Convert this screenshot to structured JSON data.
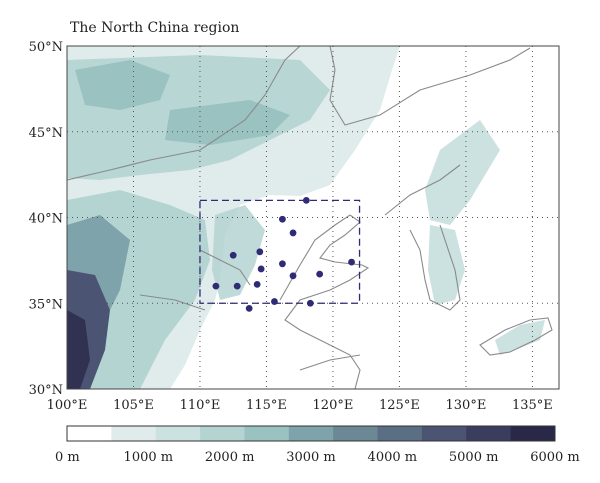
{
  "title": "The North China region",
  "lat_labels": [
    "50°N",
    "45°N",
    "40°N",
    "35°N",
    "30°N"
  ],
  "lat_values": [
    50,
    45,
    40,
    35,
    30
  ],
  "lon_labels": [
    "100°E",
    "105°E",
    "110°E",
    "115°E",
    "120°E",
    "125°E",
    "130°E",
    "135°E"
  ],
  "lon_values": [
    100,
    105,
    110,
    115,
    120,
    125,
    130,
    135
  ],
  "extent": {
    "lon": [
      100,
      137
    ],
    "lat": [
      30,
      50
    ]
  },
  "study_box": {
    "lon": [
      110,
      122
    ],
    "lat": [
      35,
      41
    ]
  },
  "stations": [
    {
      "lon": 118.0,
      "lat": 41.0
    },
    {
      "lon": 116.2,
      "lat": 39.9
    },
    {
      "lon": 117.0,
      "lat": 39.1
    },
    {
      "lon": 114.5,
      "lat": 38.0
    },
    {
      "lon": 112.5,
      "lat": 37.8
    },
    {
      "lon": 116.2,
      "lat": 37.3
    },
    {
      "lon": 114.6,
      "lat": 37.0
    },
    {
      "lon": 117.0,
      "lat": 36.6
    },
    {
      "lon": 119.0,
      "lat": 36.7
    },
    {
      "lon": 121.4,
      "lat": 37.4
    },
    {
      "lon": 111.2,
      "lat": 36.0
    },
    {
      "lon": 112.8,
      "lat": 36.0
    },
    {
      "lon": 114.3,
      "lat": 36.1
    },
    {
      "lon": 115.6,
      "lat": 35.1
    },
    {
      "lon": 118.3,
      "lat": 35.0
    },
    {
      "lon": 113.7,
      "lat": 34.7
    }
  ],
  "colorbar": {
    "labels": [
      "0 m",
      "1000 m",
      "2000 m",
      "3000 m",
      "4000 m",
      "5000 m",
      "6000 m"
    ],
    "colors": [
      "#ffffff",
      "#dfeceb",
      "#cbe2e0",
      "#b4d4d2",
      "#99c2c1",
      "#7ea3aa",
      "#6b8894",
      "#5a6e84",
      "#4b5473",
      "#3b3d5e",
      "#2a2848"
    ]
  },
  "colors": {
    "terrain_low": "#dfeceb",
    "terrain_mid": "#b4d4d2",
    "terrain_high": "#7ea3aa",
    "terrain_peak": "#4b5473",
    "station": "#2f2b74",
    "box": "#2f2b74",
    "border": "#8a8a8a"
  }
}
